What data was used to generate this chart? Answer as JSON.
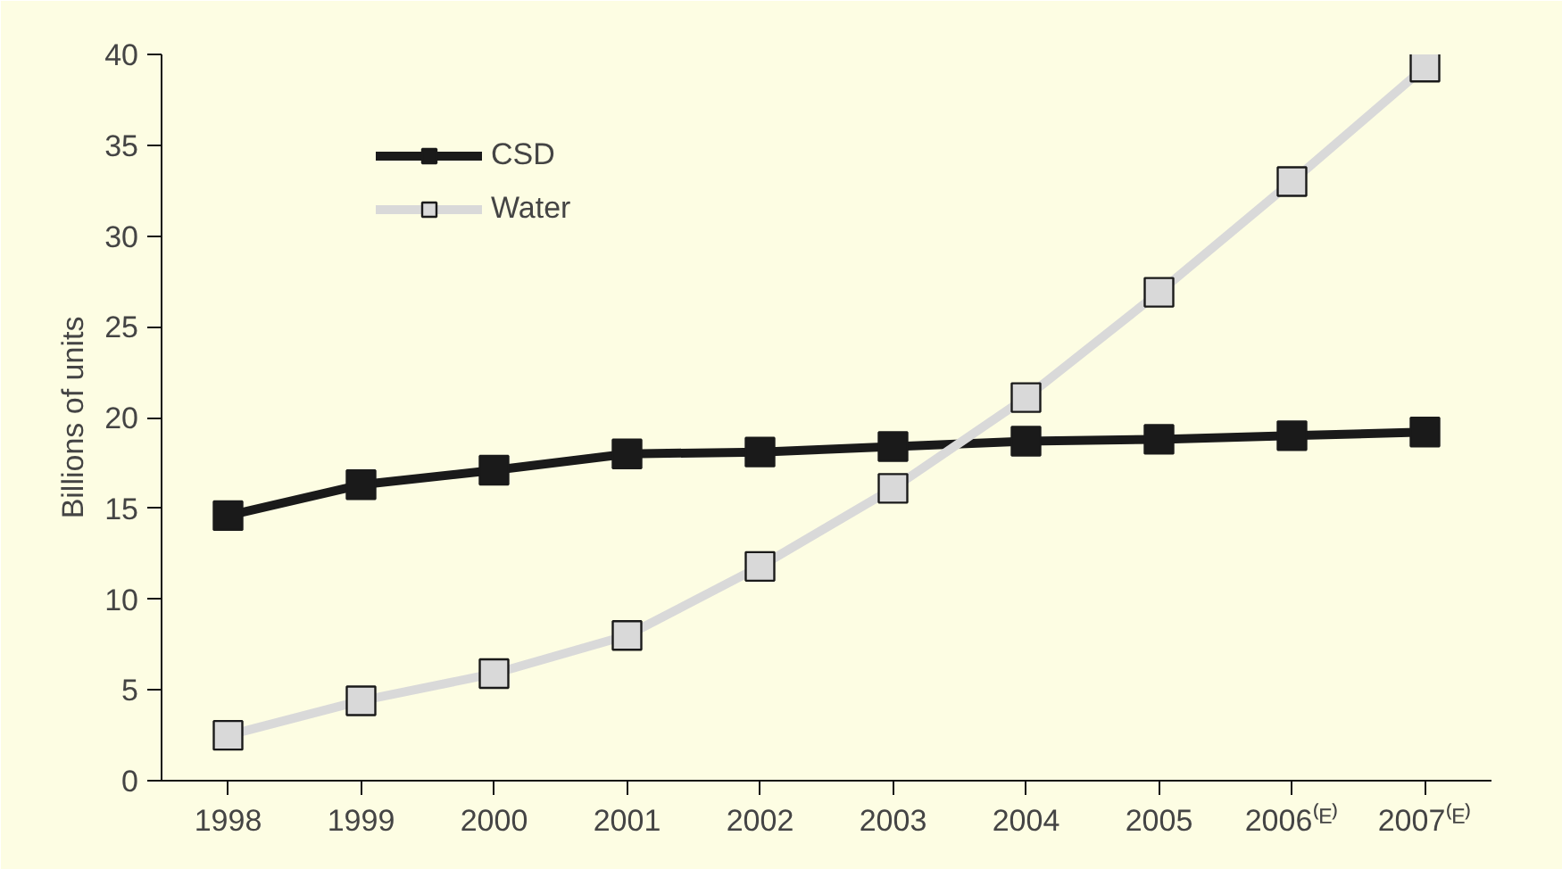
{
  "chart_data": {
    "type": "line",
    "ylabel": "Billions of units",
    "categories": [
      "1998",
      "1999",
      "2000",
      "2001",
      "2002",
      "2003",
      "2004",
      "2005",
      "2006⁽ᴱ⁾",
      "2007⁽ᴱ⁾"
    ],
    "series": [
      {
        "name": "CSD",
        "color": "#1a1a1a",
        "values": [
          14.6,
          16.3,
          17.1,
          18.0,
          18.1,
          18.4,
          18.7,
          18.8,
          19.0,
          19.2
        ]
      },
      {
        "name": "Water",
        "color": "#d9d9d9",
        "values": [
          2.5,
          4.4,
          5.9,
          8.0,
          11.8,
          16.1,
          21.1,
          26.9,
          33.0,
          39.3
        ]
      }
    ],
    "ylim": [
      0,
      40
    ],
    "yticks": [
      0,
      5,
      10,
      15,
      20,
      25,
      30,
      35,
      40
    ],
    "grid": false,
    "legend": "top left",
    "marker": "square",
    "line_style": "solid"
  }
}
